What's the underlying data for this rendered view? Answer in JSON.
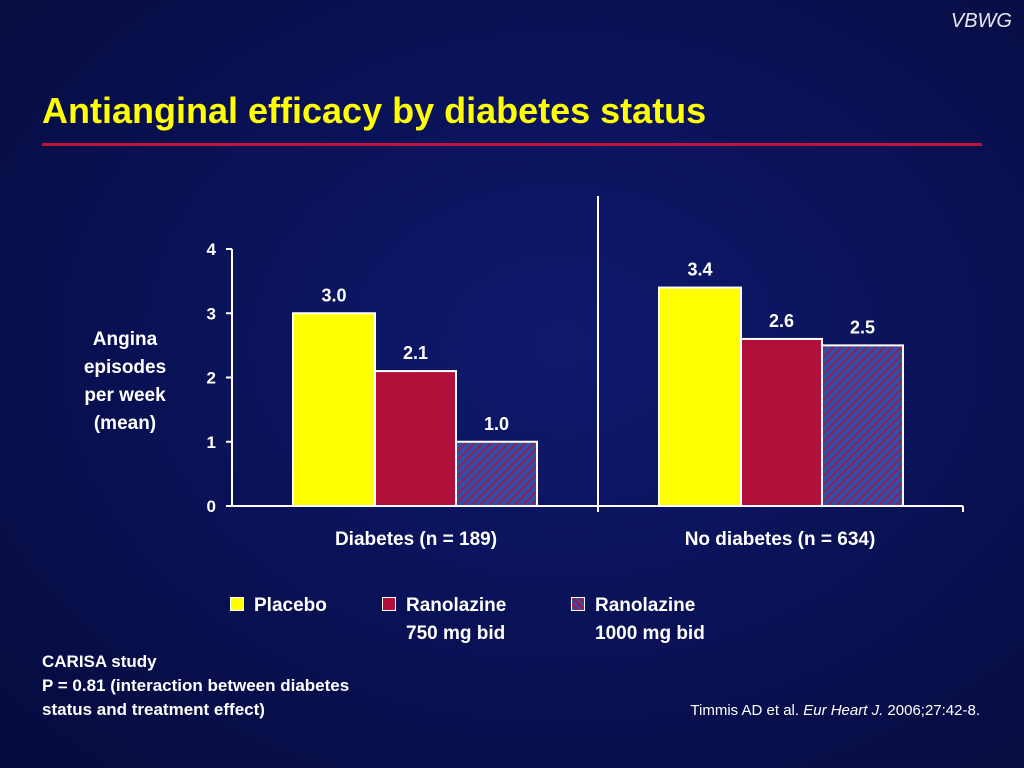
{
  "brand": "VBWG",
  "title": "Antianginal efficacy by diabetes status",
  "colors": {
    "title": "#ffff00",
    "accent_rule": "#c0153a",
    "placebo": "#ffff00",
    "ranolazine_750": "#b0103a",
    "ranolazine_1000": "hatched blue/red"
  },
  "chart_data": {
    "type": "bar",
    "ylabel_lines": [
      "Angina",
      "episodes",
      "per week",
      "(mean)"
    ],
    "ylim": [
      0,
      4
    ],
    "yticks": [
      "0",
      "1",
      "2",
      "3",
      "4"
    ],
    "categories": [
      "Diabetes (n = 189)",
      "No diabetes (n = 634)"
    ],
    "series": [
      {
        "name": "Placebo",
        "values": [
          3.0,
          3.4
        ],
        "labels": [
          "3.0",
          "3.4"
        ]
      },
      {
        "name": "Ranolazine 750 mg bid",
        "values": [
          2.1,
          2.6
        ],
        "labels": [
          "2.1",
          "2.6"
        ]
      },
      {
        "name": "Ranolazine 1000 mg bid",
        "values": [
          1.0,
          2.5
        ],
        "labels": [
          "1.0",
          "2.5"
        ]
      }
    ],
    "grid": false,
    "legend_position": "bottom"
  },
  "legend": [
    {
      "line1": "Placebo",
      "line2": ""
    },
    {
      "line1": "Ranolazine",
      "line2": "750 mg bid"
    },
    {
      "line1": "Ranolazine",
      "line2": "1000 mg bid"
    }
  ],
  "footnote": {
    "line1": "CARISA study",
    "line2": "P = 0.81 (interaction between diabetes",
    "line3": "status and treatment effect)"
  },
  "citation": {
    "authors": "Timmis AD et al. ",
    "journal": "Eur Heart J.",
    "details": " 2006;27:42-8."
  }
}
